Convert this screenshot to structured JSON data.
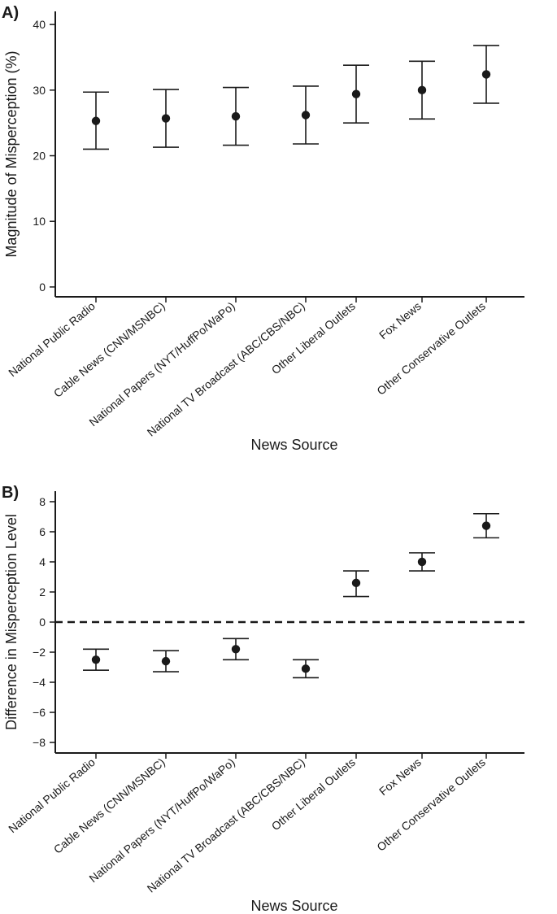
{
  "chart_data": [
    {
      "type": "scatter",
      "panel_label": "A)",
      "title": "",
      "xlabel": "News Source",
      "ylabel": "Magnitude of Misperception (%)",
      "ylim": [
        -1.5,
        42
      ],
      "yticks": [
        0,
        10,
        20,
        30,
        40
      ],
      "ytick_labels": [
        "0",
        "10",
        "20",
        "30",
        "40"
      ],
      "reference_line": null,
      "categories": [
        "National Public Radio",
        "Cable News (CNN/MSNBC)",
        "National Papers (NYT/HuffPo/WaPo)",
        "National TV Broadcast (ABC/CBS/NBC)",
        "Other Liberal Outlets",
        "Fox News",
        "Other Conservative Outlets"
      ],
      "values": [
        25.3,
        25.7,
        26.0,
        26.2,
        29.4,
        30.0,
        32.4
      ],
      "lower": [
        21.0,
        21.3,
        21.6,
        21.8,
        25.0,
        25.6,
        28.0
      ],
      "upper": [
        29.7,
        30.1,
        30.4,
        30.6,
        33.8,
        34.4,
        36.8
      ],
      "grid": false
    },
    {
      "type": "scatter",
      "panel_label": "B)",
      "title": "",
      "xlabel": "News Source",
      "ylabel": "Difference in Misperception Level",
      "ylim": [
        -8.7,
        8.7
      ],
      "yticks": [
        -8,
        -6,
        -4,
        -2,
        0,
        2,
        4,
        6,
        8
      ],
      "ytick_labels": [
        "−8",
        "−6",
        "−4",
        "−2",
        "0",
        "2",
        "4",
        "6",
        "8"
      ],
      "reference_line": 0,
      "categories": [
        "National Public Radio",
        "Cable News (CNN/MSNBC)",
        "National Papers (NYT/HuffPo/WaPo)",
        "National TV Broadcast (ABC/CBS/NBC)",
        "Other Liberal Outlets",
        "Fox News",
        "Other Conservative Outlets"
      ],
      "values": [
        -2.5,
        -2.6,
        -1.8,
        -3.1,
        2.6,
        4.0,
        6.4
      ],
      "lower": [
        -3.2,
        -3.3,
        -2.5,
        -3.7,
        1.7,
        3.4,
        5.6
      ],
      "upper": [
        -1.8,
        -1.9,
        -1.1,
        -2.5,
        3.4,
        4.6,
        7.2
      ],
      "grid": false
    }
  ]
}
